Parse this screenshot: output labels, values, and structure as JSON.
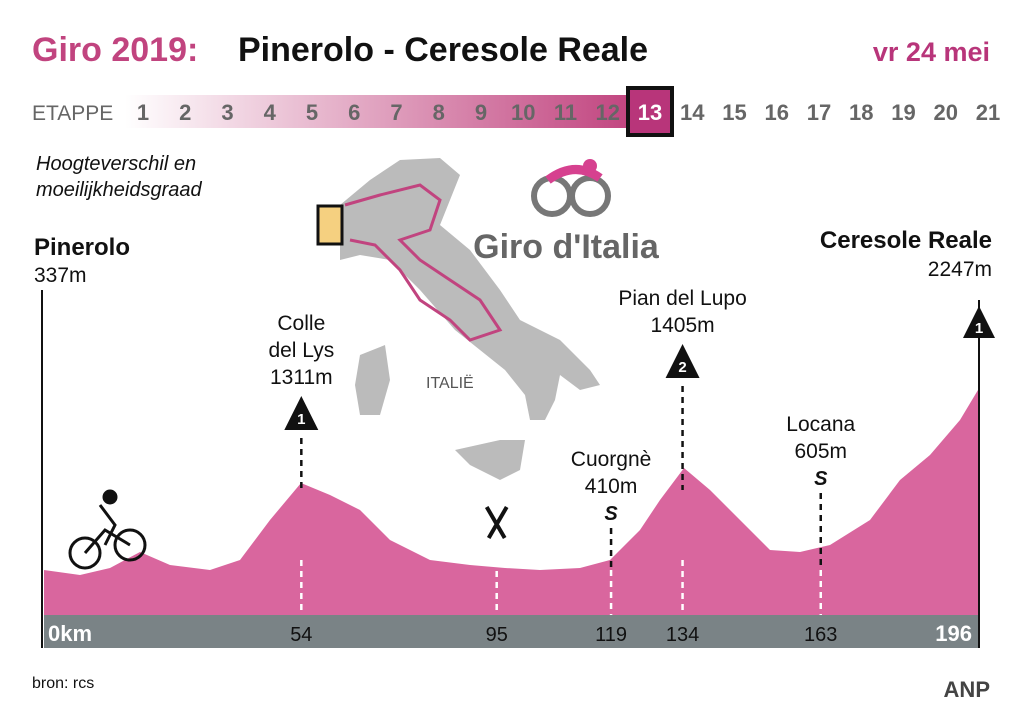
{
  "header": {
    "title_prefix": "Giro 2019:",
    "title": "Pinerolo - Ceresole Reale",
    "date": "vr 24 mei"
  },
  "stages": {
    "label": "ETAPPE",
    "numbers": [
      "1",
      "2",
      "3",
      "4",
      "5",
      "6",
      "7",
      "8",
      "9",
      "10",
      "11",
      "12",
      "13",
      "14",
      "15",
      "16",
      "17",
      "18",
      "19",
      "20",
      "21"
    ],
    "current": "13"
  },
  "subtitle": [
    "Hoogteverschil en",
    "moeilijkheidsgraad"
  ],
  "map": {
    "label": "ITALIË",
    "logo": "Giro d'Italia"
  },
  "start": {
    "name": "Pinerolo",
    "elevation": "337m"
  },
  "finish": {
    "name": "Ceresole Reale",
    "elevation": "2247m",
    "category": "1"
  },
  "climbs": [
    {
      "name": [
        "Colle",
        "del Lys"
      ],
      "elevation": "1311m",
      "category": "1",
      "km": "54"
    },
    {
      "name": [
        "Pian del Lupo"
      ],
      "elevation": "1405m",
      "category": "2",
      "km": "134"
    }
  ],
  "sprints": [
    {
      "name": "Cuorgnè",
      "elevation": "410m",
      "symbol": "S",
      "km": "119"
    },
    {
      "name": "Locana",
      "elevation": "605m",
      "symbol": "S",
      "km": "163"
    }
  ],
  "feed_zone": {
    "km": "95"
  },
  "distance": {
    "start": "0km",
    "end": "196"
  },
  "footer": {
    "source": "bron: rcs",
    "credit": "ANP"
  }
}
